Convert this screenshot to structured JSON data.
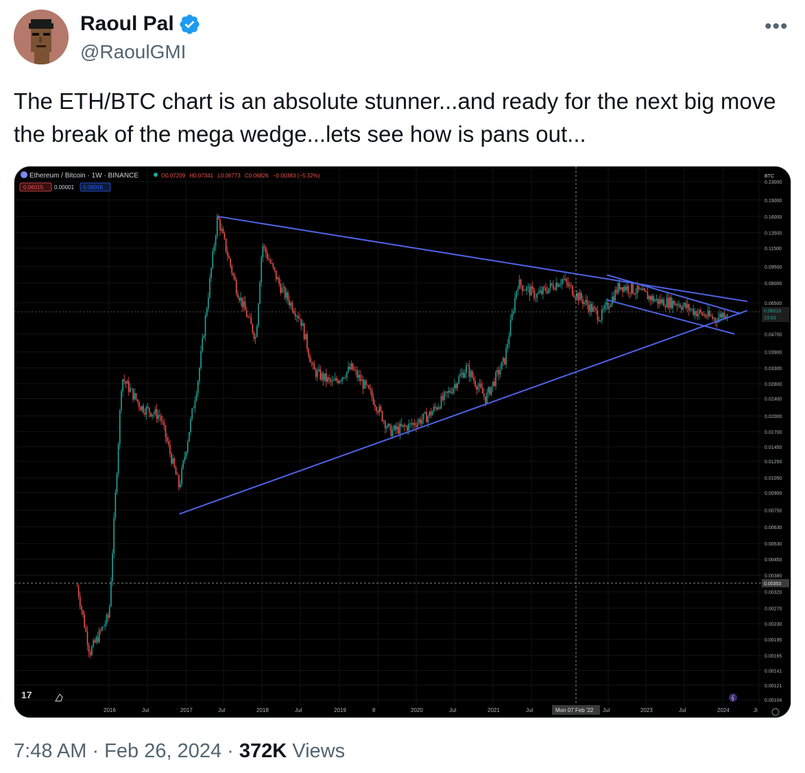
{
  "author": {
    "name": "Raoul Pal",
    "handle": "@RaoulGMI",
    "verified": true,
    "avatar_icon": "pixel-art-punk-avatar"
  },
  "more_icon": "•••",
  "tweet_text": "The ETH/BTC chart is an absolute stunner...and ready for the next big move the break of the mega wedge...lets see how is pans out...",
  "chart": {
    "header_title": "Ethereum / Bitcoin · 1W · BINANCE",
    "ohlc": {
      "open": "O0.07209",
      "high": "H0.07341",
      "low": "L0.06773",
      "close": "C0.06826",
      "change": "−0.00383 (−5.32%)"
    },
    "bid": "0.06015",
    "spread": "0.00001",
    "ask": "0.06016",
    "currency_label": "BTC",
    "price_tag": "0.06016",
    "countdown": "13:53",
    "crosshair_price": "0.00353",
    "crosshair_date": "Mon 07 Feb '22",
    "y_ticks": [
      "0.23000",
      "0.19000",
      "0.16000",
      "0.13500",
      "0.11500",
      "0.09500",
      "0.08000",
      "0.06500",
      "0.04700",
      "0.03900",
      "0.03300",
      "0.02800",
      "0.02400",
      "0.02000",
      "0.01700",
      "0.01450",
      "0.01250",
      "0.01050",
      "0.00900",
      "0.00750",
      "0.00630",
      "0.00530",
      "0.00450",
      "0.00380",
      "0.00320",
      "0.00270",
      "0.00230",
      "0.00195",
      "0.00165",
      "0.00141",
      "0.00121",
      "0.00104"
    ],
    "x_ticks": [
      "2016",
      "Jul",
      "2017",
      "Jul",
      "2018",
      "Jul",
      "2019",
      "8",
      "2020",
      "Jul",
      "2021",
      "Jul",
      "Jul",
      "2023",
      "Jul",
      "2024",
      "Ji"
    ],
    "tv_logo": "17",
    "colors": {
      "up": "#26a69a",
      "down": "#ef5350",
      "trendline": "#4f63e8"
    }
  },
  "chart_data": {
    "type": "line",
    "title": "Ethereum / Bitcoin · 1W · BINANCE",
    "xlabel": "",
    "ylabel": "",
    "y_scale": "log",
    "ylim": [
      0.00104,
      0.23
    ],
    "series": [
      {
        "x": [
          "2015-08",
          "2015-10",
          "2016-01",
          "2016-03",
          "2016-06",
          "2016-09",
          "2016-12",
          "2017-03",
          "2017-06",
          "2017-09",
          "2017-12",
          "2018-01",
          "2018-04",
          "2018-07",
          "2018-09",
          "2018-12",
          "2019-03",
          "2019-06",
          "2019-09",
          "2019-12",
          "2020-03",
          "2020-06",
          "2020-09",
          "2020-12",
          "2021-03",
          "2021-05",
          "2021-08",
          "2021-12",
          "2022-02",
          "2022-06",
          "2022-09",
          "2022-12",
          "2023-03",
          "2023-06",
          "2023-09",
          "2023-12",
          "2024-02"
        ],
        "y": [
          0.0034,
          0.0017,
          0.0025,
          0.03,
          0.022,
          0.02,
          0.0095,
          0.03,
          0.16,
          0.075,
          0.045,
          0.12,
          0.075,
          0.055,
          0.032,
          0.028,
          0.033,
          0.025,
          0.017,
          0.018,
          0.02,
          0.025,
          0.033,
          0.024,
          0.036,
          0.08,
          0.07,
          0.083,
          0.072,
          0.056,
          0.078,
          0.073,
          0.066,
          0.065,
          0.059,
          0.055,
          0.06
        ]
      }
    ],
    "trendlines": [
      {
        "from": [
          "2017-06",
          0.16
        ],
        "to": [
          "2024-05",
          0.066
        ]
      },
      {
        "from": [
          "2016-12",
          0.0072
        ],
        "to": [
          "2024-05",
          0.06
        ]
      },
      {
        "from": [
          "2022-07",
          0.087
        ],
        "to": [
          "2024-04",
          0.058
        ]
      },
      {
        "from": [
          "2022-07",
          0.067
        ],
        "to": [
          "2024-03",
          0.047
        ]
      }
    ],
    "grid": true
  },
  "footer": {
    "time": "7:48 AM · Feb 26, 2024 · ",
    "views_count": "372K",
    "views_label": " Views"
  }
}
